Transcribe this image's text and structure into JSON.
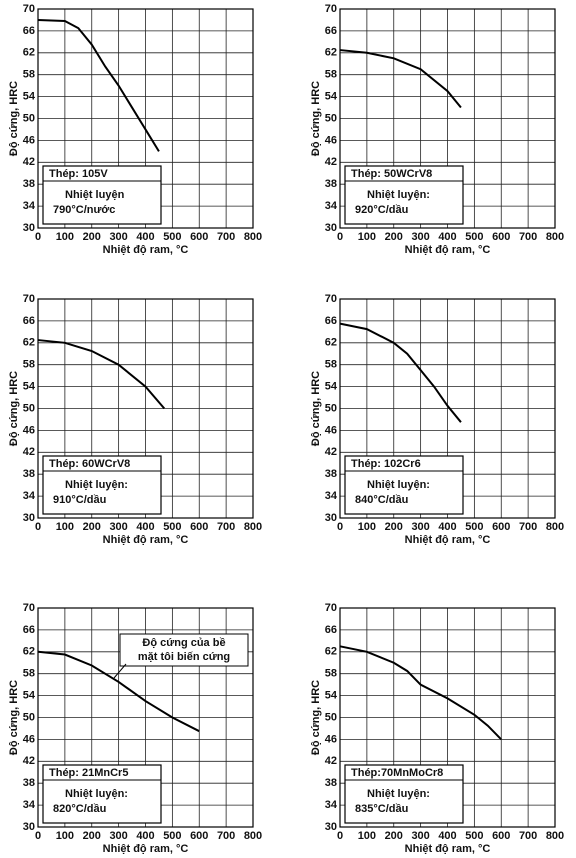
{
  "chart_data": [
    {
      "type": "line",
      "ylabel": "Độ cứng, HRC",
      "xlabel": "Nhiệt độ ram, °C",
      "steel": "Thép: 105V",
      "treatment_title": "Nhiệt luyện",
      "treatment": "790°C/nước",
      "x": [
        0,
        100,
        150,
        200,
        250,
        300,
        350,
        400,
        450
      ],
      "values": [
        68,
        67.8,
        66.5,
        63.5,
        59.5,
        56,
        52,
        48,
        44
      ],
      "color": "#000000",
      "xlim": [
        0,
        800
      ],
      "ylim": [
        30,
        70
      ],
      "xticks": [
        0,
        100,
        200,
        300,
        400,
        500,
        600,
        700,
        800
      ],
      "yticks": [
        30,
        34,
        38,
        42,
        46,
        50,
        54,
        58,
        62,
        66,
        70
      ],
      "grid": true
    },
    {
      "type": "line",
      "ylabel": "Độ cứng, HRC",
      "xlabel": "Nhiệt độ ram, °C",
      "steel": "Thép: 50WCrV8",
      "treatment_title": "Nhiệt luyện:",
      "treatment": "920°C/dầu",
      "x": [
        0,
        100,
        200,
        300,
        400,
        450
      ],
      "values": [
        62.5,
        62,
        61,
        59,
        55,
        52
      ],
      "color": "#000000",
      "xlim": [
        0,
        800
      ],
      "ylim": [
        30,
        70
      ],
      "xticks": [
        0,
        100,
        200,
        300,
        400,
        500,
        600,
        700,
        800
      ],
      "yticks": [
        30,
        34,
        38,
        42,
        46,
        50,
        54,
        58,
        62,
        66,
        70
      ],
      "grid": true
    },
    {
      "type": "line",
      "ylabel": "Độ cứng, HRC",
      "xlabel": "Nhiệt độ ram, °C",
      "steel": "Thép: 60WCrV8",
      "treatment_title": "Nhiệt luyện:",
      "treatment": "910°C/dầu",
      "x": [
        0,
        100,
        200,
        300,
        400,
        470
      ],
      "values": [
        62.5,
        62,
        60.5,
        58,
        54,
        50
      ],
      "color": "#000000",
      "xlim": [
        0,
        800
      ],
      "ylim": [
        30,
        70
      ],
      "xticks": [
        0,
        100,
        200,
        300,
        400,
        500,
        600,
        700,
        800
      ],
      "yticks": [
        30,
        34,
        38,
        42,
        46,
        50,
        54,
        58,
        62,
        66,
        70
      ],
      "grid": true
    },
    {
      "type": "line",
      "ylabel": "Độ cứng, HRC",
      "xlabel": "Nhiệt độ ram, °C",
      "steel": "Thép: 102Cr6",
      "treatment_title": "Nhiệt luyện:",
      "treatment": "840°C/dầu",
      "x": [
        0,
        100,
        200,
        250,
        300,
        350,
        400,
        450
      ],
      "values": [
        65.5,
        64.5,
        62,
        60,
        57,
        54,
        50.5,
        47.5
      ],
      "color": "#000000",
      "xlim": [
        0,
        800
      ],
      "ylim": [
        30,
        70
      ],
      "xticks": [
        0,
        100,
        200,
        300,
        400,
        500,
        600,
        700,
        800
      ],
      "yticks": [
        30,
        34,
        38,
        42,
        46,
        50,
        54,
        58,
        62,
        66,
        70
      ],
      "grid": true
    },
    {
      "type": "line",
      "ylabel": "Độ cứng, HRC",
      "xlabel": "Nhiệt độ ram, °C",
      "steel": "Thép: 21MnCr5",
      "treatment_title": "Nhiệt luyện:",
      "treatment": "820°C/dầu",
      "annotation": [
        "Độ cứng của bề",
        "mặt tôi biến cứng"
      ],
      "x": [
        0,
        100,
        200,
        300,
        400,
        500,
        600
      ],
      "values": [
        62,
        61.5,
        59.5,
        56.5,
        53,
        50,
        47.5
      ],
      "color": "#000000",
      "xlim": [
        0,
        800
      ],
      "ylim": [
        30,
        70
      ],
      "xticks": [
        0,
        100,
        200,
        300,
        400,
        500,
        600,
        700,
        800
      ],
      "yticks": [
        30,
        34,
        38,
        42,
        46,
        50,
        54,
        58,
        62,
        66,
        70
      ],
      "grid": true
    },
    {
      "type": "line",
      "ylabel": "Độ cứng, HRC",
      "xlabel": "Nhiệt độ ram, °C",
      "steel": "Thép:70MnMoCr8",
      "treatment_title": "Nhiệt luyện:",
      "treatment": "835°C/dầu",
      "x": [
        0,
        100,
        200,
        250,
        300,
        400,
        500,
        550,
        600
      ],
      "values": [
        63,
        62,
        60,
        58.5,
        56,
        53.5,
        50.5,
        48.5,
        46
      ],
      "color": "#000000",
      "xlim": [
        0,
        800
      ],
      "ylim": [
        30,
        70
      ],
      "xticks": [
        0,
        100,
        200,
        300,
        400,
        500,
        600,
        700,
        800
      ],
      "yticks": [
        30,
        34,
        38,
        42,
        46,
        50,
        54,
        58,
        62,
        66,
        70
      ],
      "grid": true
    }
  ]
}
